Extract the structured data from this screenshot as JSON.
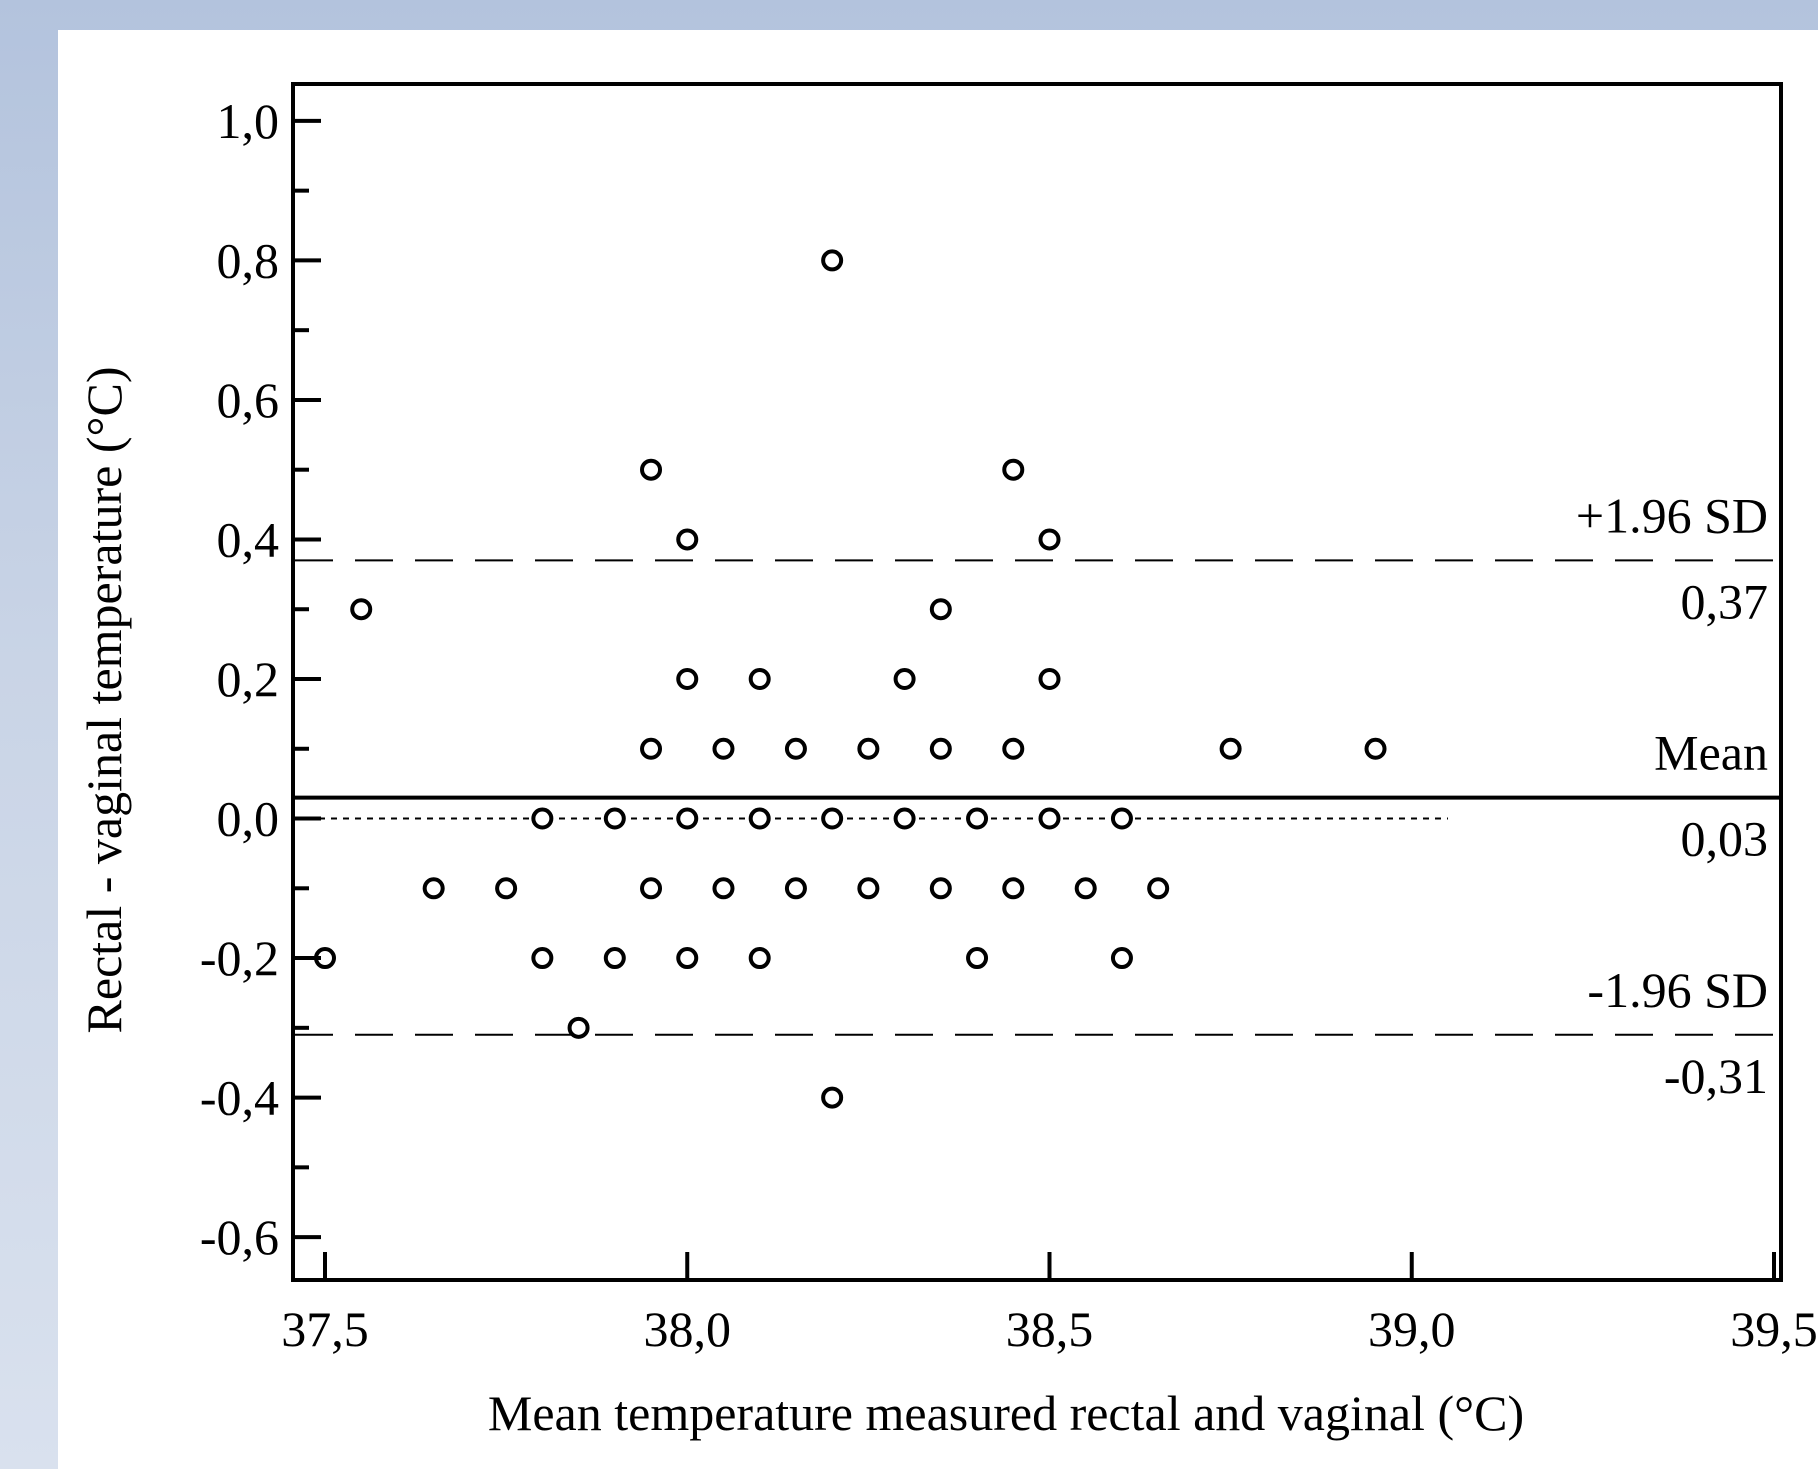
{
  "chart_data": {
    "type": "scatter",
    "title": "",
    "xlabel": "Mean temperature measured rectal and vaginal (°C)",
    "ylabel": "Rectal - vaginal temperature (°C)",
    "xlim": [
      37.5,
      39.5
    ],
    "ylim": [
      -0.65,
      1.05
    ],
    "x_ticks": [
      {
        "value": 37.5,
        "label": "37,5"
      },
      {
        "value": 38.0,
        "label": "38,0"
      },
      {
        "value": 38.5,
        "label": "38,5"
      },
      {
        "value": 39.0,
        "label": "39,0"
      },
      {
        "value": 39.5,
        "label": "39,5"
      }
    ],
    "y_ticks": [
      {
        "value": 1.0,
        "label": "1,0"
      },
      {
        "value": 0.8,
        "label": "0,8"
      },
      {
        "value": 0.6,
        "label": "0,6"
      },
      {
        "value": 0.4,
        "label": "0,4"
      },
      {
        "value": 0.2,
        "label": "0,2"
      },
      {
        "value": 0.0,
        "label": "0,0"
      },
      {
        "value": -0.2,
        "label": "-0,2"
      },
      {
        "value": -0.4,
        "label": "-0,4"
      },
      {
        "value": -0.6,
        "label": "-0,6"
      }
    ],
    "y_minor_ticks": [
      0.9,
      0.7,
      0.5,
      0.3,
      0.1,
      -0.1,
      -0.3,
      -0.5
    ],
    "grid": false,
    "zero_line": {
      "y": 0.0,
      "x_range": [
        37.5,
        39.05
      ],
      "style": "dotted"
    },
    "reference_lines": [
      {
        "y": 0.37,
        "style": "dashed",
        "label": "+1.96 SD",
        "value_label": "0,37"
      },
      {
        "y": 0.03,
        "style": "solid",
        "label": "Mean",
        "value_label": "0,03"
      },
      {
        "y": -0.31,
        "style": "dashed",
        "label": "-1.96 SD",
        "value_label": "-0,31"
      }
    ],
    "points": [
      {
        "x": 38.2,
        "y": 0.8
      },
      {
        "x": 37.95,
        "y": 0.5
      },
      {
        "x": 38.45,
        "y": 0.5
      },
      {
        "x": 38.0,
        "y": 0.4
      },
      {
        "x": 38.5,
        "y": 0.4
      },
      {
        "x": 37.55,
        "y": 0.3
      },
      {
        "x": 38.35,
        "y": 0.3
      },
      {
        "x": 38.0,
        "y": 0.2
      },
      {
        "x": 38.1,
        "y": 0.2
      },
      {
        "x": 38.3,
        "y": 0.2
      },
      {
        "x": 38.5,
        "y": 0.2
      },
      {
        "x": 37.95,
        "y": 0.1
      },
      {
        "x": 38.05,
        "y": 0.1
      },
      {
        "x": 38.15,
        "y": 0.1
      },
      {
        "x": 38.25,
        "y": 0.1
      },
      {
        "x": 38.35,
        "y": 0.1
      },
      {
        "x": 38.45,
        "y": 0.1
      },
      {
        "x": 38.75,
        "y": 0.1
      },
      {
        "x": 38.95,
        "y": 0.1
      },
      {
        "x": 37.8,
        "y": 0.0
      },
      {
        "x": 37.9,
        "y": 0.0
      },
      {
        "x": 38.0,
        "y": 0.0
      },
      {
        "x": 38.1,
        "y": 0.0
      },
      {
        "x": 38.2,
        "y": 0.0
      },
      {
        "x": 38.3,
        "y": 0.0
      },
      {
        "x": 38.4,
        "y": 0.0
      },
      {
        "x": 38.5,
        "y": 0.0
      },
      {
        "x": 38.6,
        "y": 0.0
      },
      {
        "x": 37.65,
        "y": -0.1
      },
      {
        "x": 37.75,
        "y": -0.1
      },
      {
        "x": 37.95,
        "y": -0.1
      },
      {
        "x": 38.05,
        "y": -0.1
      },
      {
        "x": 38.15,
        "y": -0.1
      },
      {
        "x": 38.25,
        "y": -0.1
      },
      {
        "x": 38.35,
        "y": -0.1
      },
      {
        "x": 38.45,
        "y": -0.1
      },
      {
        "x": 38.55,
        "y": -0.1
      },
      {
        "x": 38.65,
        "y": -0.1
      },
      {
        "x": 37.5,
        "y": -0.2
      },
      {
        "x": 37.8,
        "y": -0.2
      },
      {
        "x": 37.9,
        "y": -0.2
      },
      {
        "x": 38.0,
        "y": -0.2
      },
      {
        "x": 38.1,
        "y": -0.2
      },
      {
        "x": 38.4,
        "y": -0.2
      },
      {
        "x": 38.6,
        "y": -0.2
      },
      {
        "x": 37.85,
        "y": -0.3
      },
      {
        "x": 38.2,
        "y": -0.4
      }
    ]
  }
}
